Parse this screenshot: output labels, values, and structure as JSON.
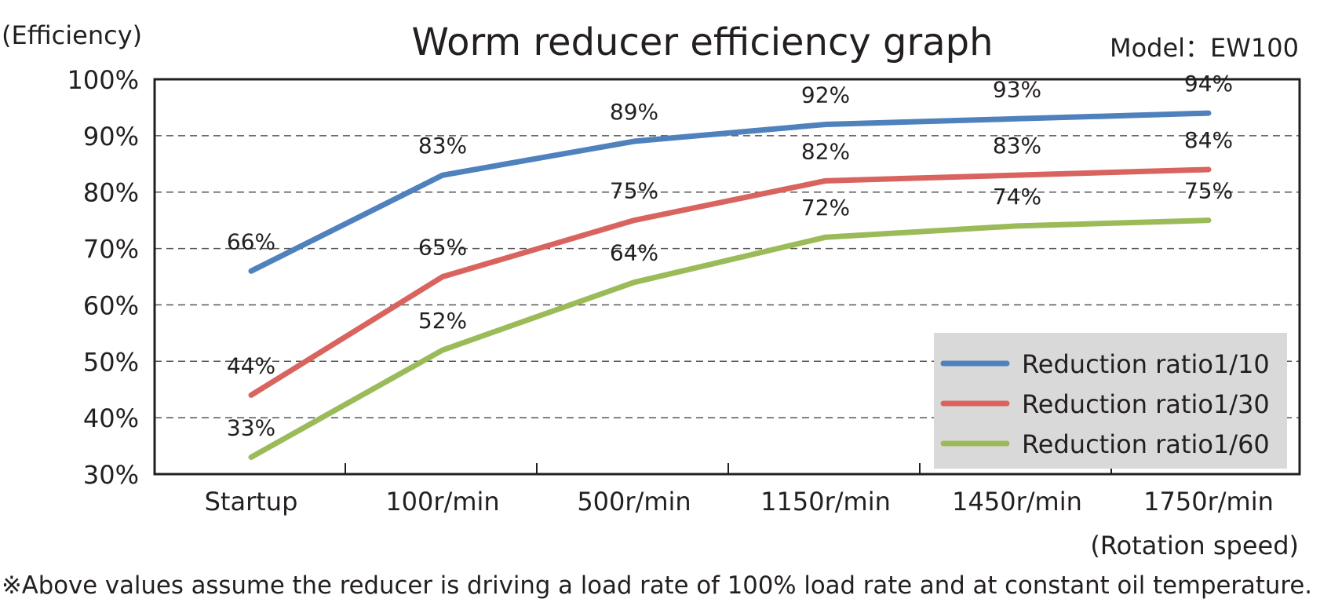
{
  "chart_data": {
    "type": "line",
    "title": "Worm reducer efficiency graph",
    "model_label": "Model：EW100",
    "ylabel": "(Efficiency)",
    "xlabel": "(Rotation speed)",
    "categories": [
      "Startup",
      "100r/min",
      "500r/min",
      "1150r/min",
      "1450r/min",
      "1750r/min"
    ],
    "ylim": [
      30,
      100
    ],
    "yticks": [
      30,
      40,
      50,
      60,
      70,
      80,
      90,
      100
    ],
    "ytick_labels": [
      "30%",
      "40%",
      "50%",
      "60%",
      "70%",
      "80%",
      "90%",
      "100%"
    ],
    "grid": "dashed horizontal",
    "legend_position": "bottom-right",
    "series": [
      {
        "name": "Reduction ratio1/10",
        "color": "#4f81bd",
        "values": [
          66,
          83,
          89,
          92,
          93,
          94
        ],
        "labels": [
          "66%",
          "83%",
          "89%",
          "92%",
          "93%",
          "94%"
        ]
      },
      {
        "name": "Reduction ratio1/30",
        "color": "#d9645f",
        "values": [
          44,
          65,
          75,
          82,
          83,
          84
        ],
        "labels": [
          "44%",
          "65%",
          "75%",
          "82%",
          "83%",
          "84%"
        ]
      },
      {
        "name": "Reduction ratio1/60",
        "color": "#9bbb59",
        "values": [
          33,
          52,
          64,
          72,
          74,
          75
        ],
        "labels": [
          "33%",
          "52%",
          "64%",
          "72%",
          "74%",
          "75%"
        ]
      }
    ]
  },
  "footnote": "※Above values assume the reducer is driving a load rate of  100% load rate and at constant oil temperature."
}
